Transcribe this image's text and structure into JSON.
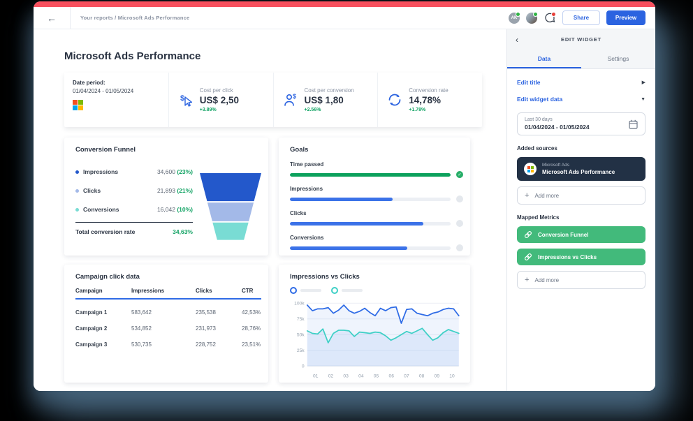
{
  "topbar": {
    "breadcrumb": "Your reports / Microsoft Ads Performance",
    "avatar_initials": "AK",
    "share_label": "Share",
    "preview_label": "Preview"
  },
  "report": {
    "title": "Microsoft Ads Performance",
    "date_card": {
      "label": "Date period:",
      "range": "01/04/2024 - 01/05/2024"
    },
    "kpis": [
      {
        "icon": "dollar-cursor-icon",
        "label": "Cost per click",
        "value": "US$ 2,50",
        "delta": "+3.89%"
      },
      {
        "icon": "person-dollar-icon",
        "label": "Cost per conversion",
        "value": "US$ 1,80",
        "delta": "+2.56%"
      },
      {
        "icon": "refresh-icon",
        "label": "Conversion rate",
        "value": "14,78%",
        "delta": "+1.78%"
      }
    ],
    "funnel": {
      "title": "Conversion Funnel",
      "rows": [
        {
          "label": "Impressions",
          "value": "34,600",
          "pct": "(23%)",
          "color": "#2358cb"
        },
        {
          "label": "Clicks",
          "value": "21,893",
          "pct": "(21%)",
          "color": "#a3b9e8"
        },
        {
          "label": "Conversions",
          "value": "16,042",
          "pct": "(10%)",
          "color": "#79dcd4"
        }
      ],
      "total_label": "Total conversion rate",
      "total_value": "34,63%"
    },
    "goals": {
      "title": "Goals",
      "items": [
        {
          "label": "Time passed",
          "pct": 100,
          "color": "#0ca15c",
          "done": true
        },
        {
          "label": "Impressions",
          "pct": 64,
          "color": "#3b72e8",
          "done": false
        },
        {
          "label": "Clicks",
          "pct": 83,
          "color": "#3b72e8",
          "done": false
        },
        {
          "label": "Conversions",
          "pct": 73,
          "color": "#3b72e8",
          "done": false
        }
      ]
    },
    "campaign_table": {
      "title": "Campaign click data",
      "headers": [
        "Campaign",
        "Impressions",
        "Clicks",
        "CTR"
      ],
      "rows": [
        [
          "Campaign 1",
          "583,642",
          "235,538",
          "42,53%"
        ],
        [
          "Campaign 2",
          "534,852",
          "231,973",
          "28,76%"
        ],
        [
          "Campaign 3",
          "530,735",
          "228,752",
          "23,51%"
        ]
      ]
    }
  },
  "chart_data": {
    "type": "area",
    "title": "Impressions vs Clicks",
    "unit": "thousands",
    "x_ticks": [
      "01",
      "02",
      "03",
      "04",
      "05",
      "06",
      "07",
      "08",
      "09",
      "10"
    ],
    "y_ticks": [
      "0",
      "25k",
      "50k",
      "75k",
      "100k"
    ],
    "ylim": [
      0,
      100
    ],
    "grid": true,
    "legend_position": "top",
    "series": [
      {
        "name": "Impressions",
        "color": "#2e6be6",
        "fill": "rgba(80,130,235,0.09)",
        "values": [
          97,
          88,
          91,
          91,
          93,
          84,
          89,
          97,
          88,
          84,
          87,
          92,
          85,
          80,
          92,
          88,
          93,
          94,
          68,
          90,
          91,
          84,
          82,
          80,
          84,
          86,
          90,
          92,
          91,
          80
        ]
      },
      {
        "name": "Clicks",
        "color": "#3ed0c6",
        "fill": "rgba(110,160,235,0.14)",
        "values": [
          56,
          52,
          51,
          59,
          37,
          52,
          57,
          57,
          56,
          47,
          54,
          53,
          52,
          54,
          53,
          48,
          41,
          45,
          50,
          55,
          52,
          56,
          60,
          50,
          41,
          45,
          53,
          58,
          55,
          52
        ]
      }
    ]
  },
  "edit_panel": {
    "title": "EDIT WIDGET",
    "tabs": [
      {
        "label": "Data",
        "active": true
      },
      {
        "label": "Settings",
        "active": false
      }
    ],
    "edit_title_label": "Edit title",
    "edit_widget_data_label": "Edit widget data",
    "date_selector": {
      "preset": "Last 30 days",
      "range": "01/04/2024 - 01/05/2024"
    },
    "added_sources_label": "Added sources",
    "source": {
      "provider": "Microsoft Ads",
      "name": "Microsoft Ads Performance"
    },
    "add_more_label": "Add more",
    "mapped_metrics_label": "Mapped Metrics",
    "mapped_metrics": [
      "Conversion Funnel",
      "Impressions vs Clicks"
    ]
  },
  "colors": {
    "brand_red": "#f8505e",
    "accent_blue": "#2b63e0",
    "positive_green": "#12a364",
    "mapped_metric_green": "#42ba7b"
  }
}
